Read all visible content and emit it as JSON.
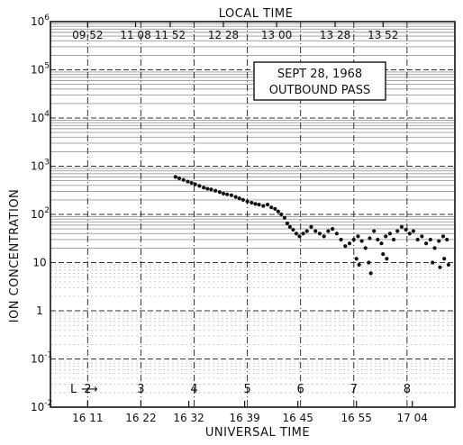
{
  "chart_data": {
    "type": "scatter",
    "title": "",
    "top_axis_title": "LOCAL TIME",
    "top_ticks": [
      "09 52",
      "11 08",
      "11 52",
      "12 28",
      "13 00",
      "13 28",
      "13 52"
    ],
    "top_tick_L": [
      2.0,
      2.9,
      3.55,
      4.55,
      5.55,
      6.65,
      7.55
    ],
    "xlabel": "UNIVERSAL TIME",
    "ut_ticks": [
      "16 11",
      "16 22",
      "16 32",
      "16 39",
      "16 45",
      "16 55",
      "17 04"
    ],
    "ut_tick_L": [
      2.0,
      3.0,
      3.9,
      4.95,
      5.95,
      7.05,
      8.1
    ],
    "l_axis_prefix": "L",
    "l_axis_arrow": "⟶",
    "l_ticks": [
      "2",
      "3",
      "4",
      "5",
      "6",
      "7",
      "8"
    ],
    "l_values": [
      2,
      3,
      4,
      5,
      6,
      7,
      8
    ],
    "xlim": [
      1.3,
      8.9
    ],
    "ylabel": "ION CONCENTRATION",
    "y_scale": "log",
    "ylim": [
      0.01,
      1000000
    ],
    "y_ticks": [
      {
        "value": 1000000,
        "base": "10",
        "exp": "6"
      },
      {
        "value": 100000,
        "base": "10",
        "exp": "5"
      },
      {
        "value": 10000,
        "base": "10",
        "exp": "4"
      },
      {
        "value": 1000,
        "base": "10",
        "exp": "3"
      },
      {
        "value": 100,
        "base": "10",
        "exp": "2"
      },
      {
        "value": 10,
        "base": "10",
        "exp": ""
      },
      {
        "value": 1,
        "base": "1",
        "exp": ""
      },
      {
        "value": 0.1,
        "base": "10",
        "exp": "-1"
      },
      {
        "value": 0.01,
        "base": "10",
        "exp": "-2"
      }
    ],
    "grid": true,
    "annotation": {
      "line1": "SEPT 28, 1968",
      "line2": "OUTBOUND PASS"
    },
    "series": [
      {
        "name": "",
        "points": [
          [
            3.65,
            600
          ],
          [
            3.72,
            560
          ],
          [
            3.8,
            520
          ],
          [
            3.88,
            480
          ],
          [
            3.95,
            450
          ],
          [
            4.02,
            420
          ],
          [
            4.1,
            390
          ],
          [
            4.18,
            360
          ],
          [
            4.25,
            340
          ],
          [
            4.32,
            330
          ],
          [
            4.4,
            310
          ],
          [
            4.48,
            290
          ],
          [
            4.55,
            270
          ],
          [
            4.62,
            260
          ],
          [
            4.7,
            250
          ],
          [
            4.78,
            230
          ],
          [
            4.85,
            215
          ],
          [
            4.92,
            200
          ],
          [
            5.0,
            185
          ],
          [
            5.08,
            175
          ],
          [
            5.15,
            165
          ],
          [
            5.22,
            160
          ],
          [
            5.3,
            150
          ],
          [
            5.38,
            160
          ],
          [
            5.45,
            140
          ],
          [
            5.52,
            130
          ],
          [
            5.58,
            115
          ],
          [
            5.64,
            100
          ],
          [
            5.7,
            85
          ],
          [
            5.75,
            65
          ],
          [
            5.8,
            55
          ],
          [
            5.86,
            48
          ],
          [
            5.92,
            40
          ],
          [
            5.98,
            35
          ],
          [
            6.05,
            40
          ],
          [
            6.12,
            45
          ],
          [
            6.2,
            55
          ],
          [
            6.28,
            45
          ],
          [
            6.36,
            40
          ],
          [
            6.44,
            35
          ],
          [
            6.52,
            45
          ],
          [
            6.6,
            50
          ],
          [
            6.68,
            40
          ],
          [
            6.76,
            30
          ],
          [
            6.84,
            22
          ],
          [
            6.92,
            25
          ],
          [
            7.0,
            30
          ],
          [
            7.08,
            35
          ],
          [
            7.15,
            28
          ],
          [
            7.22,
            20
          ],
          [
            7.3,
            32
          ],
          [
            7.38,
            45
          ],
          [
            7.45,
            30
          ],
          [
            7.52,
            25
          ],
          [
            7.6,
            35
          ],
          [
            7.68,
            40
          ],
          [
            7.75,
            30
          ],
          [
            7.82,
            45
          ],
          [
            7.9,
            55
          ],
          [
            7.98,
            48
          ],
          [
            8.05,
            40
          ],
          [
            8.12,
            45
          ],
          [
            8.2,
            30
          ],
          [
            8.28,
            35
          ],
          [
            8.36,
            25
          ],
          [
            8.44,
            30
          ],
          [
            8.52,
            20
          ],
          [
            8.6,
            28
          ],
          [
            8.68,
            35
          ],
          [
            8.75,
            30
          ],
          [
            7.05,
            12
          ],
          [
            7.1,
            9
          ],
          [
            7.28,
            10
          ],
          [
            7.32,
            6
          ],
          [
            7.55,
            15
          ],
          [
            7.62,
            12
          ],
          [
            8.48,
            10
          ],
          [
            8.62,
            8
          ],
          [
            8.7,
            12
          ],
          [
            8.78,
            9
          ]
        ]
      }
    ]
  }
}
